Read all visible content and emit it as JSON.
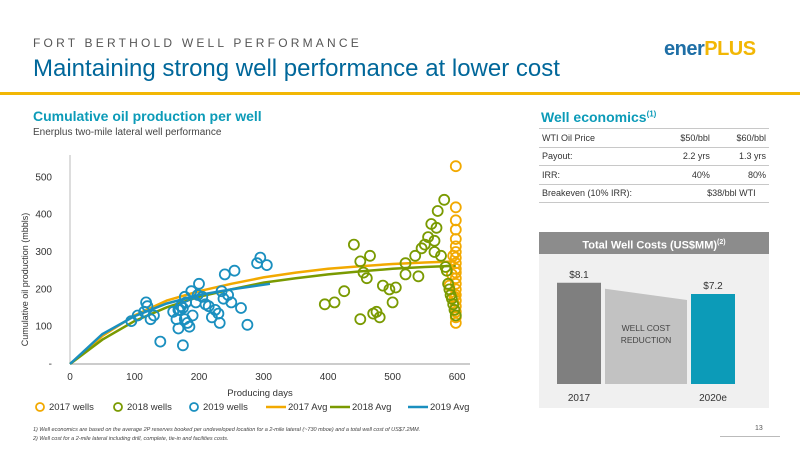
{
  "header": {
    "eyebrow": "FORT BERTHOLD WELL PERFORMANCE",
    "title": "Maintaining strong well performance at lower cost",
    "logo_part1": "ener",
    "logo_part2": "PLUS"
  },
  "colors": {
    "accent": "#f2b705",
    "title_blue": "#00679a",
    "teal": "#0c9bb8",
    "wells_2017": "#f2a900",
    "wells_2018": "#7a9a01",
    "wells_2019": "#1a8fbf"
  },
  "chart_data": [
    {
      "type": "scatter",
      "title": "Cumulative oil production per well",
      "subtitle": "Enerplus two-mile lateral well performance",
      "xlabel": "Producing days",
      "ylabel": "Cumulative oil production (mbbls)",
      "xlim": [
        0,
        620
      ],
      "ylim": [
        0,
        560
      ],
      "xticks": [
        "0",
        "100",
        "200",
        "300",
        "400",
        "500",
        "600"
      ],
      "yticks": [
        "-",
        "100",
        "200",
        "300",
        "400",
        "500"
      ],
      "legend_position": "bottom",
      "legend": [
        "2017 wells",
        "2018 wells",
        "2019 wells",
        "2017 Avg",
        "2018 Avg",
        "2019 Avg"
      ],
      "series": [
        {
          "name": "2017 wells",
          "kind": "points",
          "color": "#f2a900",
          "points": [
            [
              598,
              530
            ],
            [
              598,
              420
            ],
            [
              598,
              385
            ],
            [
              598,
              360
            ],
            [
              598,
              335
            ],
            [
              598,
              315
            ],
            [
              598,
              300
            ],
            [
              598,
              285
            ],
            [
              598,
              270
            ],
            [
              598,
              255
            ],
            [
              598,
              245
            ],
            [
              598,
              230
            ],
            [
              598,
              215
            ],
            [
              598,
              200
            ],
            [
              598,
              185
            ],
            [
              598,
              170
            ],
            [
              598,
              155
            ],
            [
              598,
              140
            ],
            [
              598,
              125
            ],
            [
              598,
              110
            ],
            [
              588,
              210
            ],
            [
              592,
              240
            ],
            [
              594,
              290
            ],
            [
              596,
              180
            ]
          ]
        },
        {
          "name": "2018 wells",
          "kind": "points",
          "color": "#7a9a01",
          "points": [
            [
              440,
              320
            ],
            [
              450,
              275
            ],
            [
              455,
              245
            ],
            [
              460,
              230
            ],
            [
              465,
              290
            ],
            [
              470,
              135
            ],
            [
              475,
              140
            ],
            [
              480,
              125
            ],
            [
              450,
              120
            ],
            [
              425,
              195
            ],
            [
              410,
              165
            ],
            [
              395,
              160
            ],
            [
              485,
              210
            ],
            [
              495,
              200
            ],
            [
              500,
              165
            ],
            [
              505,
              205
            ],
            [
              520,
              240
            ],
            [
              520,
              270
            ],
            [
              535,
              290
            ],
            [
              540,
              235
            ],
            [
              545,
              310
            ],
            [
              550,
              320
            ],
            [
              555,
              340
            ],
            [
              560,
              375
            ],
            [
              565,
              330
            ],
            [
              575,
              290
            ],
            [
              580,
              440
            ],
            [
              582,
              260
            ],
            [
              584,
              250
            ],
            [
              586,
              215
            ],
            [
              588,
              200
            ],
            [
              590,
              185
            ],
            [
              592,
              175
            ],
            [
              594,
              160
            ],
            [
              596,
              145
            ],
            [
              598,
              130
            ],
            [
              570,
              410
            ],
            [
              568,
              365
            ],
            [
              565,
              300
            ]
          ]
        },
        {
          "name": "2019 wells",
          "kind": "points",
          "color": "#1a8fbf",
          "points": [
            [
              95,
              115
            ],
            [
              105,
              130
            ],
            [
              115,
              140
            ],
            [
              118,
              165
            ],
            [
              120,
              155
            ],
            [
              125,
              120
            ],
            [
              130,
              130
            ],
            [
              140,
              60
            ],
            [
              160,
              140
            ],
            [
              165,
              120
            ],
            [
              168,
              95
            ],
            [
              170,
              145
            ],
            [
              172,
              155
            ],
            [
              175,
              150
            ],
            [
              178,
              120
            ],
            [
              180,
              165
            ],
            [
              182,
              110
            ],
            [
              185,
              100
            ],
            [
              188,
              195
            ],
            [
              190,
              130
            ],
            [
              195,
              165
            ],
            [
              198,
              185
            ],
            [
              200,
              215
            ],
            [
              205,
              180
            ],
            [
              210,
              160
            ],
            [
              215,
              155
            ],
            [
              220,
              125
            ],
            [
              225,
              145
            ],
            [
              230,
              135
            ],
            [
              232,
              110
            ],
            [
              235,
              195
            ],
            [
              238,
              175
            ],
            [
              240,
              240
            ],
            [
              245,
              185
            ],
            [
              250,
              165
            ],
            [
              255,
              250
            ],
            [
              265,
              150
            ],
            [
              275,
              105
            ],
            [
              290,
              270
            ],
            [
              295,
              285
            ],
            [
              305,
              265
            ],
            [
              175,
              50
            ],
            [
              168,
              145
            ],
            [
              178,
              180
            ]
          ]
        },
        {
          "name": "2017 Avg",
          "kind": "line",
          "color": "#f2a900",
          "points": [
            [
              0,
              0
            ],
            [
              50,
              75
            ],
            [
              100,
              130
            ],
            [
              150,
              170
            ],
            [
              200,
              195
            ],
            [
              250,
              215
            ],
            [
              300,
              232
            ],
            [
              350,
              245
            ],
            [
              400,
              255
            ],
            [
              450,
              262
            ],
            [
              500,
              268
            ],
            [
              550,
              272
            ],
            [
              598,
              275
            ]
          ]
        },
        {
          "name": "2018 Avg",
          "kind": "line",
          "color": "#7a9a01",
          "points": [
            [
              0,
              0
            ],
            [
              50,
              65
            ],
            [
              100,
              115
            ],
            [
              150,
              152
            ],
            [
              200,
              180
            ],
            [
              250,
              200
            ],
            [
              300,
              218
            ],
            [
              350,
              230
            ],
            [
              400,
              240
            ],
            [
              450,
              248
            ],
            [
              500,
              255
            ],
            [
              550,
              260
            ],
            [
              598,
              263
            ]
          ]
        },
        {
          "name": "2019 Avg",
          "kind": "line",
          "color": "#1a8fbf",
          "points": [
            [
              0,
              0
            ],
            [
              50,
              80
            ],
            [
              100,
              128
            ],
            [
              150,
              162
            ],
            [
              200,
              185
            ],
            [
              250,
              200
            ],
            [
              310,
              215
            ]
          ]
        }
      ]
    },
    {
      "type": "bar",
      "title": "Total Well Costs (US$MM)",
      "title_sup": "(2)",
      "categories": [
        "2017",
        "2020e"
      ],
      "values": [
        8.1,
        7.2
      ],
      "value_labels": [
        "$8.1",
        "$7.2"
      ],
      "colors": [
        "#7f7f7f",
        "#0c9bb8"
      ],
      "ylim": [
        0,
        8.8
      ],
      "annotation_line1": "WELL COST",
      "annotation_line2": "REDUCTION"
    }
  ],
  "economics": {
    "title": "Well economics",
    "title_sup": "(1)",
    "rows": [
      {
        "label": "WTI Oil Price",
        "c1": "$50/bbl",
        "c2": "$60/bbl"
      },
      {
        "label": "Payout:",
        "c1": "2.2 yrs",
        "c2": "1.3 yrs"
      },
      {
        "label": "IRR:",
        "c1": "40%",
        "c2": "80%"
      },
      {
        "label": "Breakeven (10% IRR):",
        "c1": "$38/bbl WTI",
        "c2": ""
      }
    ]
  },
  "footnotes": {
    "f1": "1)   Well economics are based on the average 2P reserves booked per undeveloped location for a 2-mile lateral (~730 mboe) and a total well cost of US$7.2MM.",
    "f2": "2)   Well cost for a 2-mile lateral including drill, complete, tie-in and facilities costs."
  },
  "page_number": "13"
}
